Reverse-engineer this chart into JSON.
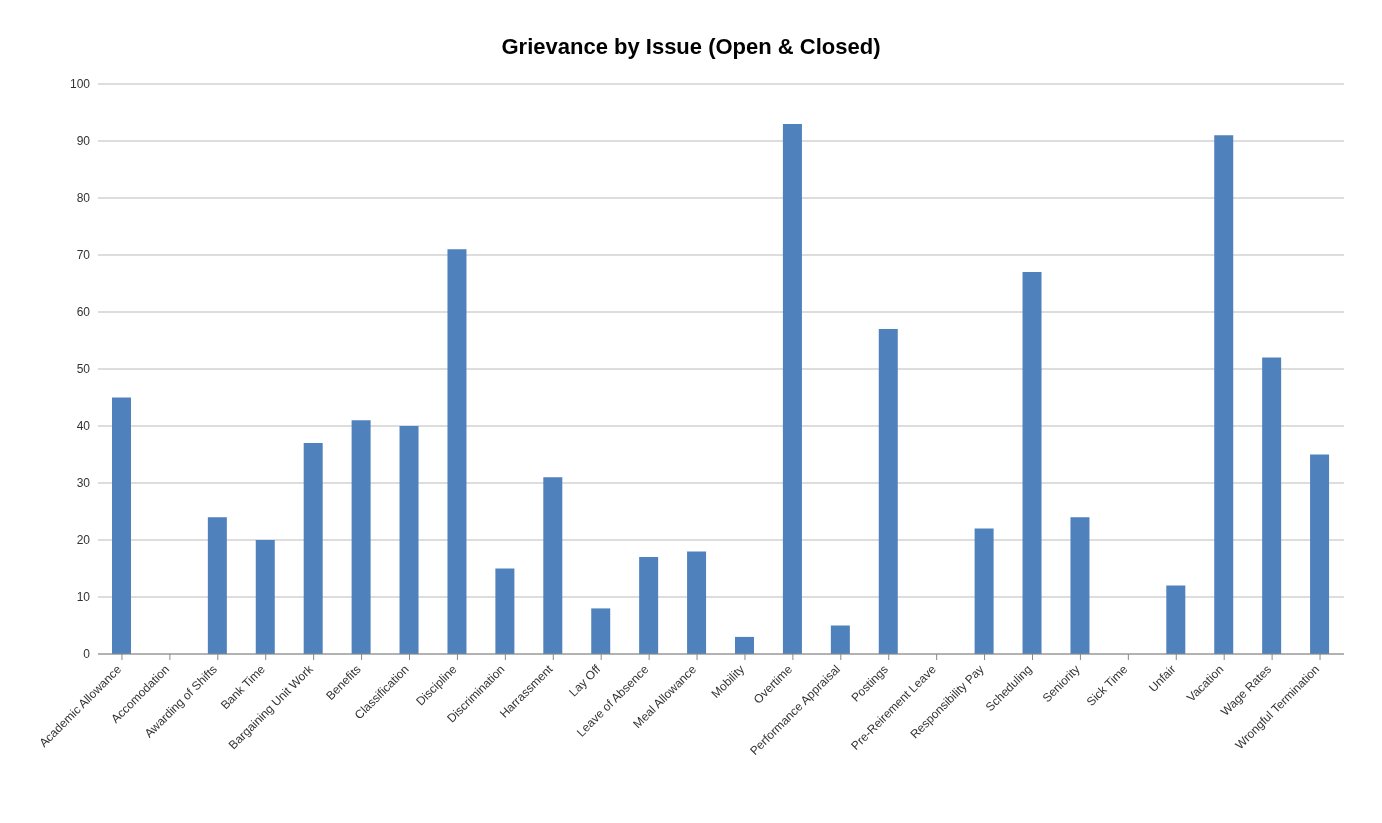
{
  "chart_data": {
    "type": "bar",
    "title": "Grievance by Issue (Open & Closed)",
    "categories": [
      "Academic Allowance",
      "Accomodation",
      "Awarding of Shifts",
      "Bank Time",
      "Bargaining Unit Work",
      "Benefits",
      "Classification",
      "Discipline",
      "Discrimination",
      "Harrassment",
      "Lay Off",
      "Leave of Absence",
      "Meal Allowance",
      "Mobility",
      "Overtime",
      "Performance Appraisal",
      "Postings",
      "Pre-Reirement Leave",
      "Responsibility Pay",
      "Scheduling",
      "Seniority",
      "Sick Time",
      "Unfair",
      "Vacation",
      "Wage Rates",
      "Wrongful Termination"
    ],
    "values": [
      45,
      0,
      24,
      20,
      37,
      41,
      40,
      71,
      15,
      31,
      8,
      17,
      18,
      3,
      93,
      5,
      57,
      0,
      22,
      67,
      24,
      0,
      12,
      91,
      52,
      35
    ],
    "color": "#4f81bd",
    "ylim": [
      0,
      100
    ],
    "yticks": [
      0,
      10,
      20,
      30,
      40,
      50,
      60,
      70,
      80,
      90,
      100
    ],
    "grid": "y"
  }
}
